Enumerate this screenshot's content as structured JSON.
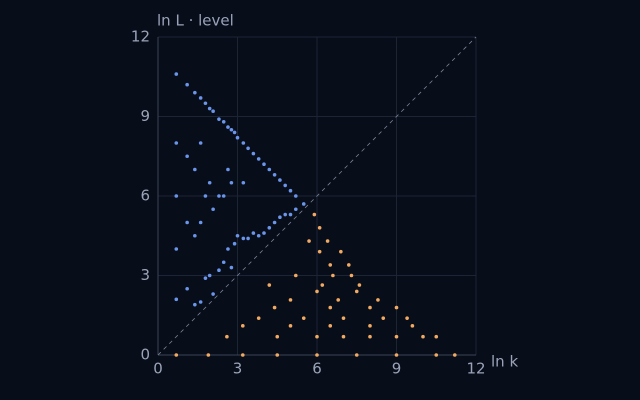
{
  "chart_data": {
    "type": "scatter",
    "xlabel": "ln k",
    "ylabel": "ln L · level",
    "xlim": [
      0,
      12
    ],
    "ylim": [
      0,
      12
    ],
    "xticks": [
      0,
      3,
      6,
      9,
      12
    ],
    "yticks": [
      0,
      3,
      6,
      9,
      12
    ],
    "grid": true,
    "diagonal": true,
    "series": [
      {
        "color": "#6b95ea",
        "x": [
          0.69,
          0.69,
          0.69,
          0.69,
          0.69,
          1.1,
          1.1,
          1.1,
          1.1,
          1.39,
          1.39,
          1.39,
          1.39,
          1.61,
          1.61,
          1.61,
          1.61,
          1.79,
          1.79,
          1.79,
          1.95,
          1.95,
          1.95,
          2.08,
          2.08,
          2.08,
          2.3,
          2.3,
          2.3,
          2.48,
          2.48,
          2.48,
          2.64,
          2.64,
          2.64,
          2.77,
          2.77,
          2.77,
          2.89,
          2.89,
          3.0,
          3.0,
          3.22,
          3.22,
          3.22,
          3.4,
          3.4,
          3.6,
          3.6,
          3.8,
          3.8,
          4.0,
          4.0,
          4.2,
          4.2,
          4.4,
          4.4,
          4.6,
          4.6,
          4.8,
          4.8,
          5.0,
          5.0,
          5.2,
          5.2,
          5.5
        ],
        "y": [
          2.1,
          4,
          6,
          8,
          10.6,
          2.5,
          5,
          7.5,
          10.2,
          1.9,
          4.5,
          7,
          9.9,
          2,
          5,
          8,
          9.7,
          2.9,
          6,
          9.5,
          3,
          6.5,
          9.3,
          2.3,
          5.5,
          9.2,
          3.2,
          6,
          8.9,
          3.5,
          6,
          8.8,
          4,
          7,
          8.6,
          3.3,
          6.5,
          8.5,
          4.2,
          8.4,
          4.5,
          8.2,
          4.4,
          6.5,
          8,
          4.4,
          7.8,
          4.6,
          7.6,
          4.5,
          7.4,
          4.6,
          7.2,
          4.8,
          7,
          5,
          6.8,
          5.2,
          6.6,
          5.3,
          6.4,
          5.3,
          6.2,
          5.5,
          6,
          5.7
        ]
      },
      {
        "color": "#f2aa62",
        "x": [
          0.69,
          1.9,
          3.2,
          4.5,
          6,
          7.5,
          9,
          10.5,
          11.2,
          2.6,
          4.5,
          6,
          7,
          8,
          9,
          10,
          10.5,
          3.2,
          5,
          6.5,
          8,
          9.6,
          3.8,
          5.5,
          7,
          8.5,
          9.4,
          4.4,
          6.5,
          8,
          9,
          5,
          6.8,
          8.3,
          6,
          7.5,
          4.2,
          6.2,
          7.6,
          5.2,
          6.6,
          7.3,
          6.5,
          7.2,
          6.1,
          6.9,
          5.7,
          6.4,
          6.1,
          5.9
        ],
        "y": [
          0,
          0,
          0,
          0,
          0,
          0,
          0,
          0,
          0,
          0.69,
          0.69,
          0.69,
          0.69,
          0.69,
          0.69,
          0.69,
          0.69,
          1.1,
          1.1,
          1.1,
          1.1,
          1.1,
          1.39,
          1.39,
          1.39,
          1.39,
          1.39,
          1.79,
          1.79,
          1.79,
          1.79,
          2.08,
          2.08,
          2.08,
          2.4,
          2.4,
          2.64,
          2.64,
          2.64,
          3,
          3,
          3,
          3.4,
          3.4,
          3.9,
          3.9,
          4.3,
          4.3,
          4.8,
          5.3
        ]
      }
    ]
  }
}
